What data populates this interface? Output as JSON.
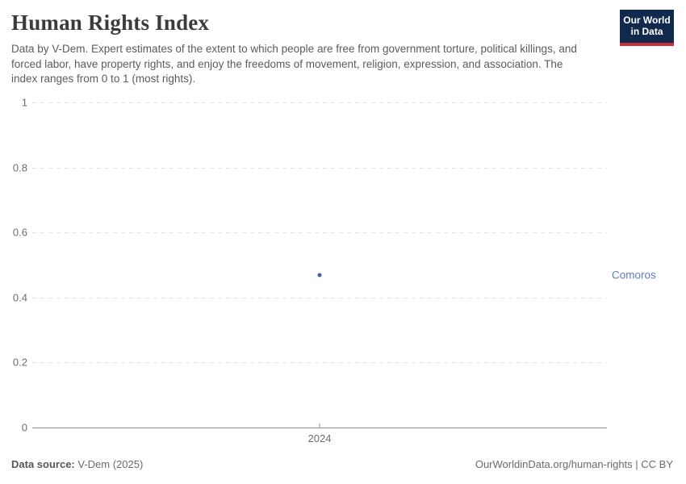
{
  "header": {
    "title": "Human Rights Index",
    "subtitle": "Data by V-Dem. Expert estimates of the extent to which people are free from government torture, political killings, and forced labor, have property rights, and enjoy the freedoms of movement, religion, expression, and association. The index ranges from 0 to 1 (most rights).",
    "logo": {
      "line1": "Our World",
      "line2": "in Data"
    }
  },
  "chart_data": {
    "type": "scatter",
    "title": "Human Rights Index",
    "series": [
      {
        "name": "Comoros",
        "points": [
          {
            "x": 2024,
            "y": 0.47
          }
        ],
        "point_color": "#3d63a3",
        "label_color": "#5d7fc1"
      }
    ],
    "categories": [
      2024
    ],
    "xticks": [
      2024
    ],
    "yticks": [
      0,
      0.2,
      0.4,
      0.6,
      0.8,
      1
    ],
    "xlim": [
      2023.5,
      2024.5
    ],
    "ylim": [
      0,
      1
    ],
    "grid": "horizontal-dashed",
    "legend_position": "entity-label-right"
  },
  "footer": {
    "source_label": "Data source:",
    "source_value": "V-Dem (2025)",
    "credit": "OurWorldinData.org/human-rights | CC BY"
  },
  "colors": {
    "series_point": "#3d63a3",
    "series_label": "#5d7fc1",
    "logo_navy": "#12294e",
    "logo_red": "#c5303e",
    "gridline": "#e2e2e2",
    "axis": "#919191",
    "tick_text": "#6e6e6e",
    "title_text": "#3b3b3b",
    "subtitle_text": "#5b5b5b"
  }
}
